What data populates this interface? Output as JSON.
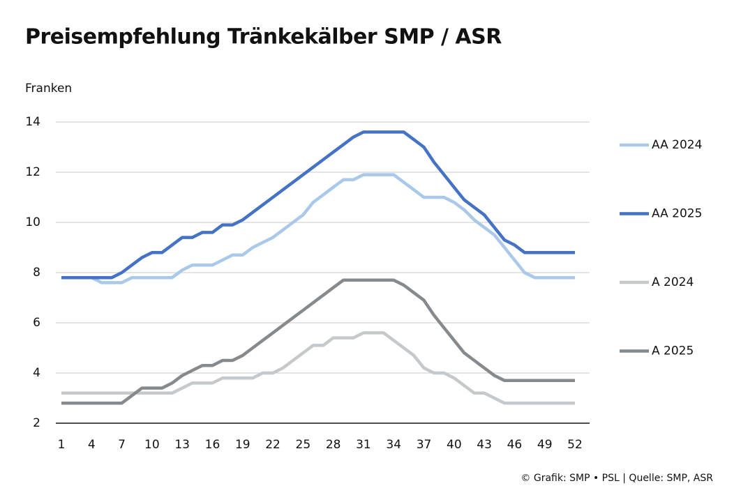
{
  "chart_data": {
    "type": "line",
    "title": "Preisempfehlung Tränkekälber SMP / ASR",
    "y_label": "Franken",
    "source": "© Grafik: SMP • PSL | Quelle: SMP, ASR",
    "x": [
      1,
      2,
      3,
      4,
      5,
      6,
      7,
      8,
      9,
      10,
      11,
      12,
      13,
      14,
      15,
      16,
      17,
      18,
      19,
      20,
      21,
      22,
      23,
      24,
      25,
      26,
      27,
      28,
      29,
      30,
      31,
      32,
      33,
      34,
      35,
      36,
      37,
      38,
      39,
      40,
      41,
      42,
      43,
      44,
      45,
      46,
      47,
      48,
      49,
      50,
      51,
      52
    ],
    "xlim": [
      1,
      52
    ],
    "xticks": [
      1,
      4,
      7,
      10,
      13,
      16,
      19,
      22,
      25,
      28,
      31,
      34,
      37,
      40,
      43,
      46,
      49,
      52
    ],
    "ylim": [
      2,
      14
    ],
    "yticks": [
      2,
      4,
      6,
      8,
      10,
      12,
      14
    ],
    "grid": true,
    "legend": "right",
    "series": [
      {
        "name": "AA 2024",
        "color": "#a9c8ea",
        "values": [
          7.8,
          7.8,
          7.8,
          7.8,
          7.6,
          7.6,
          7.6,
          7.8,
          7.8,
          7.8,
          7.8,
          7.8,
          8.1,
          8.3,
          8.3,
          8.3,
          8.5,
          8.7,
          8.7,
          9.0,
          9.2,
          9.4,
          9.7,
          10.0,
          10.3,
          10.8,
          11.1,
          11.4,
          11.7,
          11.7,
          11.9,
          11.9,
          11.9,
          11.9,
          11.6,
          11.3,
          11.0,
          11.0,
          11.0,
          10.8,
          10.5,
          10.1,
          9.8,
          9.5,
          9.0,
          8.5,
          8.0,
          7.8,
          7.8,
          7.8,
          7.8,
          7.8
        ]
      },
      {
        "name": "AA 2025",
        "color": "#4472c4",
        "values": [
          7.8,
          7.8,
          7.8,
          7.8,
          7.8,
          7.8,
          8.0,
          8.3,
          8.6,
          8.8,
          8.8,
          9.1,
          9.4,
          9.4,
          9.6,
          9.6,
          9.9,
          9.9,
          10.1,
          10.4,
          10.7,
          11.0,
          11.3,
          11.6,
          11.9,
          12.2,
          12.5,
          12.8,
          13.1,
          13.4,
          13.6,
          13.6,
          13.6,
          13.6,
          13.6,
          13.3,
          13.0,
          12.4,
          11.9,
          11.4,
          10.9,
          10.6,
          10.3,
          9.8,
          9.3,
          9.1,
          8.8,
          8.8,
          8.8,
          8.8,
          8.8,
          8.8
        ]
      },
      {
        "name": "A 2024",
        "color": "#c5c9cc",
        "values": [
          3.2,
          3.2,
          3.2,
          3.2,
          3.2,
          3.2,
          3.2,
          3.2,
          3.2,
          3.2,
          3.2,
          3.2,
          3.4,
          3.6,
          3.6,
          3.6,
          3.8,
          3.8,
          3.8,
          3.8,
          4.0,
          4.0,
          4.2,
          4.5,
          4.8,
          5.1,
          5.1,
          5.4,
          5.4,
          5.4,
          5.6,
          5.6,
          5.6,
          5.3,
          5.0,
          4.7,
          4.2,
          4.0,
          4.0,
          3.8,
          3.5,
          3.2,
          3.2,
          3.0,
          2.8,
          2.8,
          2.8,
          2.8,
          2.8,
          2.8,
          2.8,
          2.8
        ]
      },
      {
        "name": "A 2025",
        "color": "#858a8e",
        "values": [
          2.8,
          2.8,
          2.8,
          2.8,
          2.8,
          2.8,
          2.8,
          3.1,
          3.4,
          3.4,
          3.4,
          3.6,
          3.9,
          4.1,
          4.3,
          4.3,
          4.5,
          4.5,
          4.7,
          5.0,
          5.3,
          5.6,
          5.9,
          6.2,
          6.5,
          6.8,
          7.1,
          7.4,
          7.7,
          7.7,
          7.7,
          7.7,
          7.7,
          7.7,
          7.5,
          7.2,
          6.9,
          6.3,
          5.8,
          5.3,
          4.8,
          4.5,
          4.2,
          3.9,
          3.7,
          3.7,
          3.7,
          3.7,
          3.7,
          3.7,
          3.7,
          3.7
        ]
      }
    ]
  }
}
